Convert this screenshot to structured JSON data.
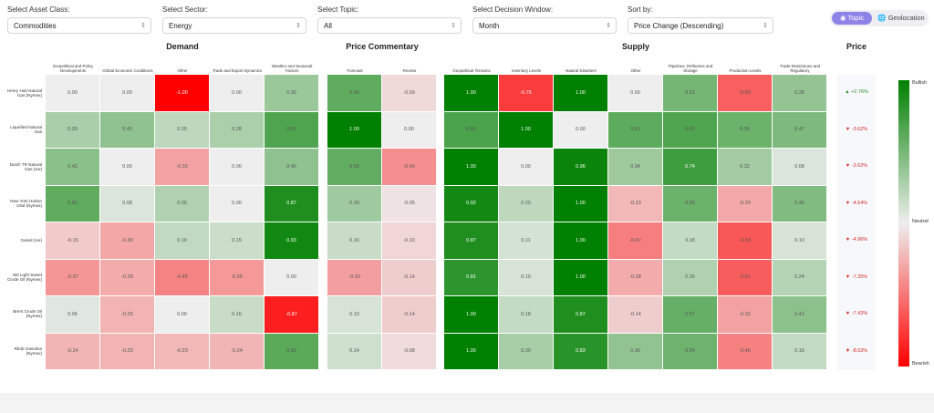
{
  "filters": [
    {
      "label": "Select Asset Class:",
      "value": "Commodities"
    },
    {
      "label": "Select Sector:",
      "value": "Energy"
    },
    {
      "label": "Select Topic:",
      "value": "All"
    },
    {
      "label": "Select Decision Window:",
      "value": "Month"
    },
    {
      "label": "Sort by:",
      "value": "Price Change (Descending)"
    }
  ],
  "toggle": {
    "topic": "Topic",
    "geolocation": "Geolocation"
  },
  "groups": [
    {
      "title": "Demand",
      "columns": [
        "Geopolitical and Policy Developments",
        "Global Economic Conditions",
        "Other",
        "Trade and Export Dynamics",
        "Weather and Seasonal Factors"
      ]
    },
    {
      "title": "Price Commentary",
      "columns": [
        "Forecast",
        "Review"
      ]
    },
    {
      "title": "Supply",
      "columns": [
        "Geopolitical Tensions",
        "Inventory Levels",
        "Natural Disasters",
        "Other",
        "Pipelines, Refineries and Storage",
        "Production Levels",
        "Trade Restrictions and Regulatory"
      ]
    },
    {
      "title": "Price",
      "columns": []
    }
  ],
  "rows": [
    {
      "name": "Henry Hub Natural Gas (Nymex)",
      "demand": [
        "0.00",
        "0.00",
        "-1.00",
        "0.00",
        "0.35"
      ],
      "commentary": [
        "0.60",
        "-0.09"
      ],
      "supply": [
        "1.00",
        "-0.75",
        "1.00",
        "0.00",
        "0.51",
        "-0.60",
        "0.38"
      ],
      "price": "▲ +2.76%",
      "price_color": "#2a8a2a"
    },
    {
      "name": "Liquefied Natural Gas",
      "demand": [
        "0.29",
        "0.40",
        "0.20",
        "0.28",
        "0.67"
      ],
      "commentary": [
        "1.00",
        "0.00"
      ],
      "supply": [
        "0.69",
        "1.00",
        "0.00",
        "0.61",
        "0.67",
        "0.55",
        "0.47"
      ],
      "price": "▼ -3.62%",
      "price_color": "#d62828"
    },
    {
      "name": "Dutch TR Natural Gas (Ice)",
      "demand": [
        "0.42",
        "0.00",
        "-0.32",
        "0.00",
        "0.40"
      ],
      "commentary": [
        "0.59",
        "-0.40"
      ],
      "supply": [
        "1.00",
        "0.00",
        "0.96",
        "0.34",
        "0.74",
        "0.32",
        "0.08"
      ],
      "price": "▼ -3.62%",
      "price_color": "#d62828"
    },
    {
      "name": "New York Harbor Ulsd (Nymex)",
      "demand": [
        "0.60",
        "0.08",
        "0.26",
        "0.00",
        "0.87"
      ],
      "commentary": [
        "0.33",
        "-0.05"
      ],
      "supply": [
        "0.92",
        "0.20",
        "1.00",
        "-0.23",
        "0.55",
        "-0.29",
        "0.46"
      ],
      "price": "▼ -4.64%",
      "price_color": "#d62828"
    },
    {
      "name": "Gasoil (Ice)",
      "demand": [
        "-0.15",
        "-0.30",
        "0.19",
        "0.15",
        "0.93"
      ],
      "commentary": [
        "0.16",
        "-0.10"
      ],
      "supply": [
        "0.87",
        "0.11",
        "1.00",
        "-0.47",
        "0.18",
        "-0.63",
        "0.10"
      ],
      "price": "▼ -4.96%",
      "price_color": "#d62828"
    },
    {
      "name": "Wti Light Sweet Crude Oil (Nymex)",
      "demand": [
        "-0.37",
        "-0.28",
        "-0.45",
        "-0.36",
        "0.00"
      ],
      "commentary": [
        "-0.33",
        "-0.14"
      ],
      "supply": [
        "0.81",
        "0.10",
        "1.00",
        "-0.28",
        "0.26",
        "-0.61",
        "0.24"
      ],
      "price": "▼ -7.35%",
      "price_color": "#d62828"
    },
    {
      "name": "Brent Crude Oil (Nymex)",
      "demand": [
        "0.06",
        "-0.25",
        "0.00",
        "0.16",
        "-0.87"
      ],
      "commentary": [
        "0.10",
        "-0.14"
      ],
      "supply": [
        "1.00",
        "0.18",
        "0.87",
        "-0.14",
        "0.57",
        "-0.32",
        "0.41"
      ],
      "price": "▼ -7.43%",
      "price_color": "#d62828"
    },
    {
      "name": "Rbob Gasoline (Nymex)",
      "demand": [
        "-0.24",
        "-0.25",
        "-0.23",
        "-0.24",
        "0.62"
      ],
      "commentary": [
        "0.14",
        "-0.08"
      ],
      "supply": [
        "1.00",
        "0.30",
        "0.83",
        "0.39",
        "0.54",
        "-0.46",
        "0.18"
      ],
      "price": "▼ -8.03%",
      "price_color": "#d62828"
    }
  ],
  "legend": {
    "top": "Bullish",
    "mid": "Neutral",
    "bottom": "Bearish"
  },
  "colors": {
    "bullish": "#008000",
    "neutral": "#eeeeee",
    "bearish": "#ff0000",
    "accent": "#8e84e8"
  }
}
